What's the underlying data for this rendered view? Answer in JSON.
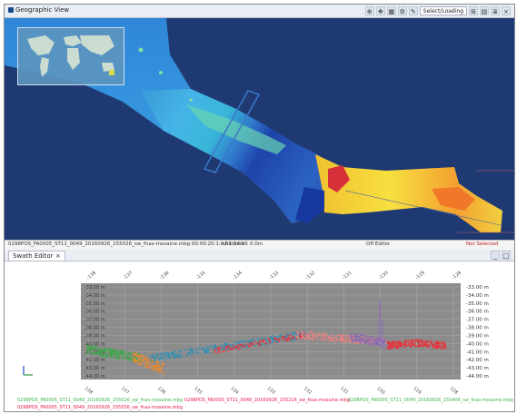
{
  "geo_view": {
    "title": "Geographic View",
    "toolbar_select": "Select/Loading",
    "icons": [
      "zoom-icon",
      "pan-icon",
      "grid-icon",
      "gear-icon",
      "pencil-icon",
      "ruler-icon",
      "chart-icon",
      "layers-icon",
      "close-icon"
    ]
  },
  "statusbar": {
    "file": "0298POS_FA0005_ST11_0049_20160926_155026_sw_fnas-mosaine.mbg 00:00:20:1:02:1:24:16",
    "field1": "+Altitude",
    "field2": "0.0m",
    "field3": "Off Editor",
    "field4": "Not Selected"
  },
  "swath_editor": {
    "tab_label": "Swath Editor",
    "close_glyph": "×",
    "right_axis_ticks": [
      "-33.00 m",
      "-34.00 m",
      "-35.00 m",
      "-36.00 m",
      "-37.00 m",
      "-38.00 m",
      "-39.00 m",
      "-40.00 m",
      "-41.00 m",
      "-42.00 m",
      "-43.00 m",
      "-44.00 m"
    ],
    "left_axis_ticks": [
      "-33.00 m",
      "-34.00 m",
      "-35.00 m",
      "-36.00 m",
      "-37.00 m",
      "-38.00 m",
      "-39.00 m",
      "-40.00 m",
      "-41.00 m",
      "-42.00 m",
      "-43.00 m",
      "-44.00 m"
    ],
    "top_ticks": [
      "-138",
      "-137",
      "-136",
      "-135",
      "-134",
      "-133",
      "-132",
      "-131",
      "-130",
      "-129",
      "-128"
    ],
    "bottom_ticks": [
      "138",
      "137",
      "136",
      "135",
      "134",
      "133",
      "132",
      "131",
      "130",
      "129",
      "128"
    ],
    "legend": [
      {
        "text": "0298POS_FA0005_ST11_0049_20160926_155026_sw_fnas-mosaine.mbg",
        "color": "#3cb44b"
      },
      {
        "text": "0298POS_FA0005_ST11_0049_20160926_155216_sw_fnas-mosaine.mbg",
        "color": "#e6194b"
      },
      {
        "text": "0298POS_FA0005_ST11_0049_20160926_155406_sw_fnas-mosaine.mbg",
        "color": "#3cb44b"
      },
      {
        "text": "0298POS_FA0005_ST11_0049_20160926_155556_sw_fnas-mosaine.mbg",
        "color": "#e6194b"
      }
    ],
    "series_colors": {
      "green": "#3aa845",
      "orange": "#e88a2e",
      "teal": "#2a8fb5",
      "red": "#e8323c",
      "purple": "#8a6bb5",
      "lightred": "#f08080"
    }
  }
}
